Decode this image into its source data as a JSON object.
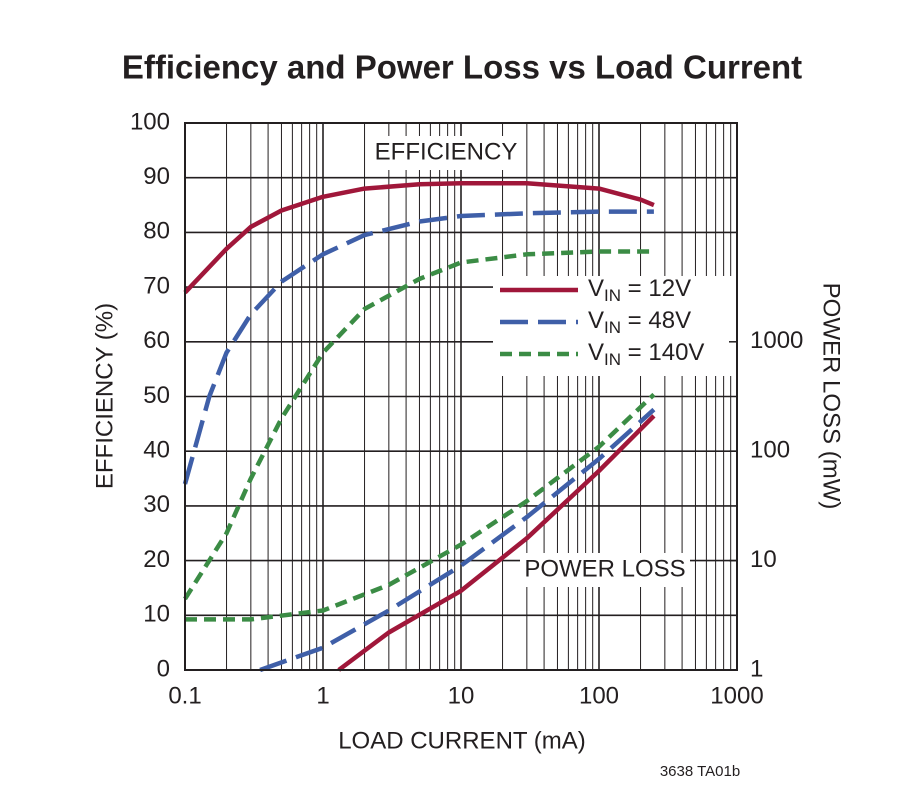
{
  "chart_data": {
    "type": "line",
    "title": "Efficiency and Power Loss vs Load Current",
    "xlabel": "LOAD CURRENT (mA)",
    "ylabel": "EFFICIENCY (%)",
    "y2label": "POWER LOSS (mW)",
    "xscale": "log",
    "y2scale": "log",
    "xlim": [
      0.1,
      1000
    ],
    "xticks": [
      0.1,
      1,
      10,
      100,
      1000
    ],
    "ylim": [
      0,
      100
    ],
    "yticks": [
      0,
      10,
      20,
      30,
      40,
      50,
      60,
      70,
      80,
      90,
      100
    ],
    "y2lim": [
      1,
      100000
    ],
    "y2ticks": [
      1,
      10,
      100,
      1000
    ],
    "grid": true,
    "annotations": [
      "EFFICIENCY",
      "POWER LOSS",
      "3638 TA01b"
    ],
    "series": [
      {
        "name": "VIN = 12V",
        "color": "#a0173a",
        "dash": "solid",
        "x": [
          0.1,
          0.2,
          0.3,
          0.5,
          1,
          2,
          5,
          10,
          30,
          100,
          200,
          250
        ],
        "values": [
          69,
          77,
          81,
          84,
          86.5,
          88,
          88.8,
          89,
          89,
          88,
          86,
          85
        ],
        "loss_x": [
          1.3,
          3,
          10,
          30,
          100,
          250
        ],
        "loss_values": [
          1,
          2.2,
          5.3,
          16,
          66,
          210
        ]
      },
      {
        "name": "VIN = 48V",
        "color": "#3f5fa8",
        "dash": "long",
        "x": [
          0.1,
          0.15,
          0.2,
          0.3,
          0.5,
          1,
          2,
          5,
          10,
          30,
          100,
          250
        ],
        "values": [
          34,
          50,
          58,
          65,
          71,
          76,
          79.5,
          82,
          83,
          83.5,
          83.8,
          83.8
        ],
        "loss_x": [
          0.35,
          1,
          3,
          10,
          30,
          100,
          250
        ],
        "loss_values": [
          1,
          1.6,
          3.5,
          9,
          25,
          85,
          240
        ]
      },
      {
        "name": "VIN = 140V",
        "color": "#3b8c45",
        "dash": "short",
        "x": [
          0.1,
          0.2,
          0.3,
          0.5,
          1,
          2,
          5,
          10,
          30,
          100,
          250
        ],
        "values": [
          13,
          25,
          35,
          46,
          58,
          66,
          71.5,
          74.5,
          76,
          76.5,
          76.5
        ],
        "loss_x": [
          0.1,
          0.3,
          1,
          3,
          10,
          30,
          100,
          250
        ],
        "loss_values": [
          2.9,
          2.9,
          3.5,
          6,
          14,
          35,
          110,
          330
        ]
      }
    ]
  }
}
